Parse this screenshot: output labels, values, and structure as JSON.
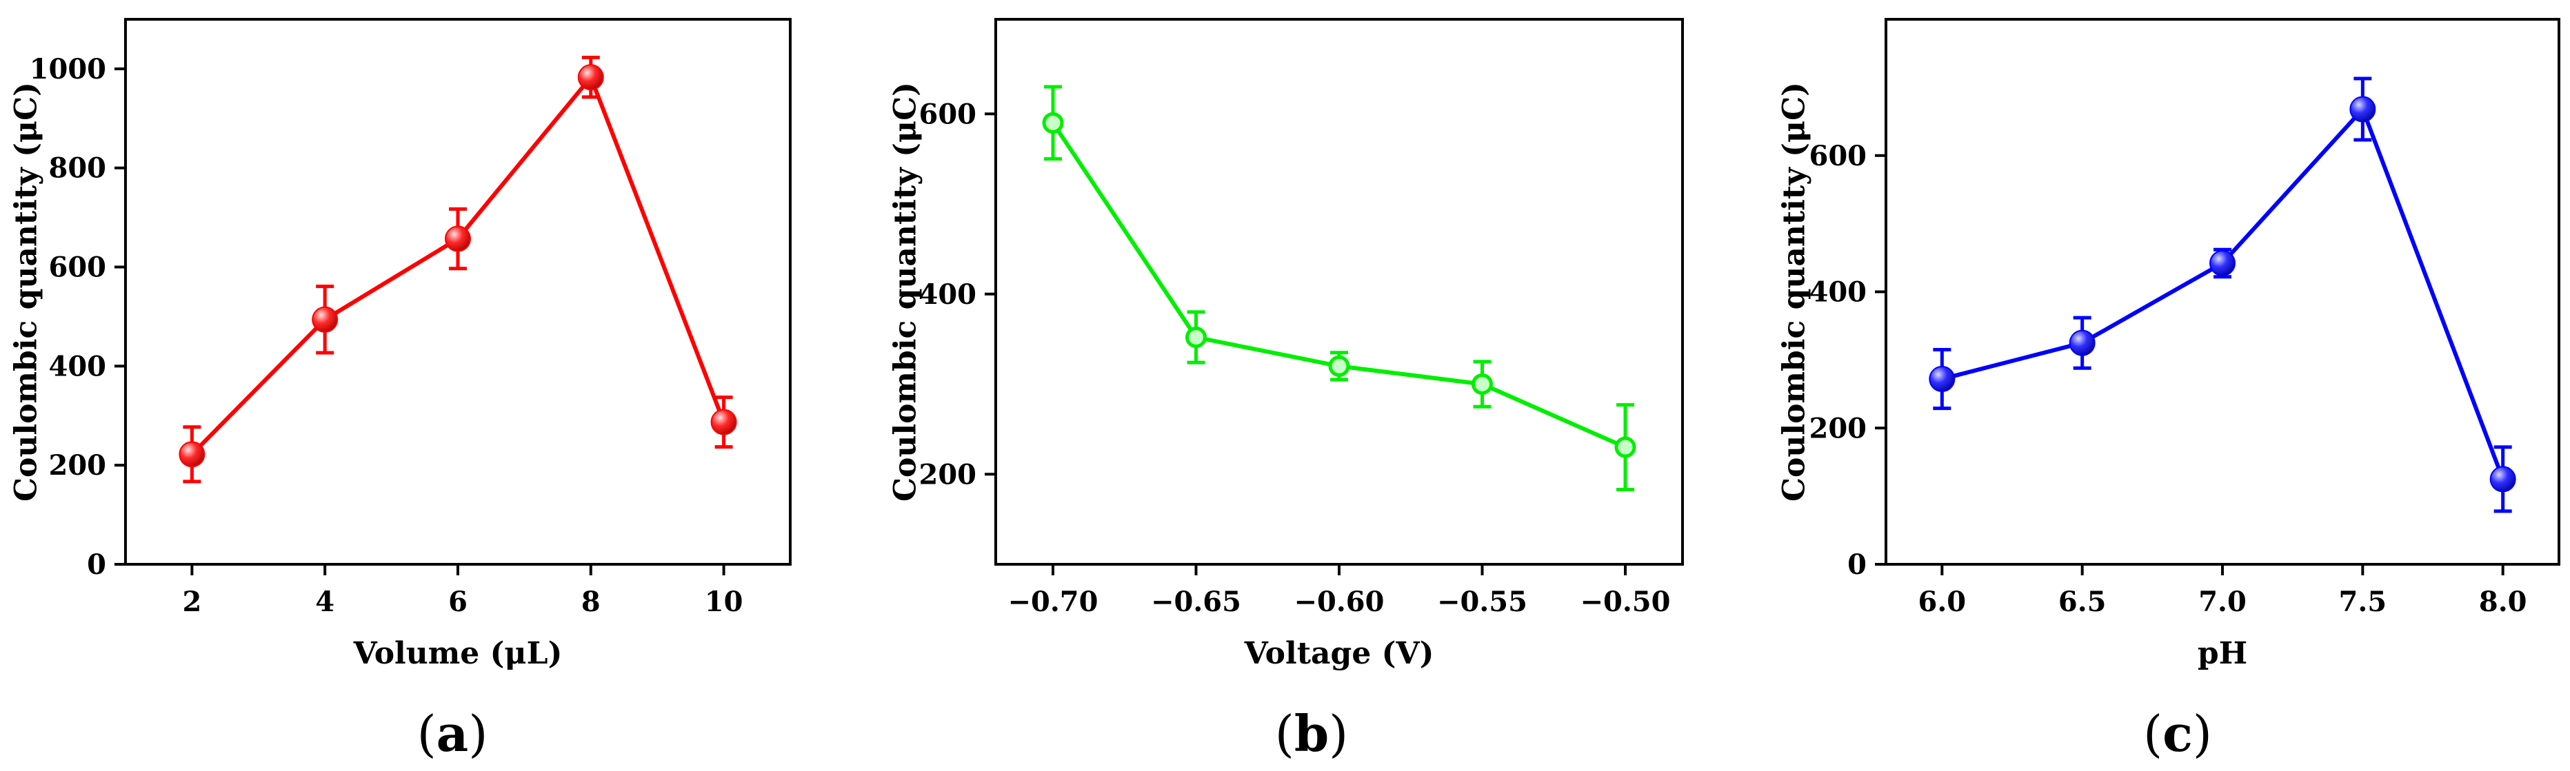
{
  "chart_data": [
    {
      "type": "line",
      "panel": "(a)",
      "panel_letter": "a",
      "xlabel": "Volume (μL)",
      "ylabel": "Coulombic quantity (μC)",
      "color": "#ff0000",
      "xlim": [
        1,
        11
      ],
      "ylim": [
        0,
        1100
      ],
      "xticks": [
        2,
        4,
        6,
        8,
        10
      ],
      "xtick_labels": [
        "2",
        "4",
        "6",
        "8",
        "10"
      ],
      "yticks": [
        0,
        200,
        400,
        600,
        800,
        1000
      ],
      "ytick_labels": [
        "0",
        "200",
        "400",
        "600",
        "800",
        "1000"
      ],
      "x": [
        2,
        4,
        6,
        8,
        10
      ],
      "y": [
        222,
        494,
        657,
        983,
        287
      ],
      "error": [
        55,
        67,
        60,
        40,
        50
      ],
      "marker": "sphere"
    },
    {
      "type": "line",
      "panel": "(b)",
      "panel_letter": "b",
      "xlabel": "Voltage (V)",
      "ylabel": "Coulombic quantity (μC)",
      "color": "#00ee00",
      "xlim": [
        -0.72,
        -0.48
      ],
      "ylim": [
        100,
        705
      ],
      "xticks": [
        -0.7,
        -0.65,
        -0.6,
        -0.55,
        -0.5
      ],
      "xtick_labels": [
        "−0.70",
        "−0.65",
        "−0.60",
        "−0.55",
        "−0.50"
      ],
      "yticks": [
        200,
        400,
        600
      ],
      "ytick_labels": [
        "200",
        "400",
        "600"
      ],
      "x": [
        -0.7,
        -0.65,
        -0.6,
        -0.55,
        -0.5
      ],
      "y": [
        590,
        352,
        320,
        300,
        230
      ],
      "error": [
        40,
        28,
        15,
        25,
        47
      ],
      "marker": "circle"
    },
    {
      "type": "line",
      "panel": "(c)",
      "panel_letter": "c",
      "xlabel": "pH",
      "ylabel": "Coulombic quantity (μC)",
      "color": "#0000ff",
      "xlim": [
        5.8,
        8.2
      ],
      "ylim": [
        0,
        800
      ],
      "xticks": [
        6.0,
        6.5,
        7.0,
        7.5,
        8.0
      ],
      "xtick_labels": [
        "6.0",
        "6.5",
        "7.0",
        "7.5",
        "8.0"
      ],
      "yticks": [
        0,
        200,
        400,
        600
      ],
      "ytick_labels": [
        "0",
        "200",
        "400",
        "600"
      ],
      "x": [
        6.0,
        6.5,
        7.0,
        7.5,
        8.0
      ],
      "y": [
        272,
        325,
        442,
        668,
        125
      ],
      "error": [
        43,
        37,
        20,
        45,
        47
      ],
      "marker": "sphere"
    }
  ]
}
